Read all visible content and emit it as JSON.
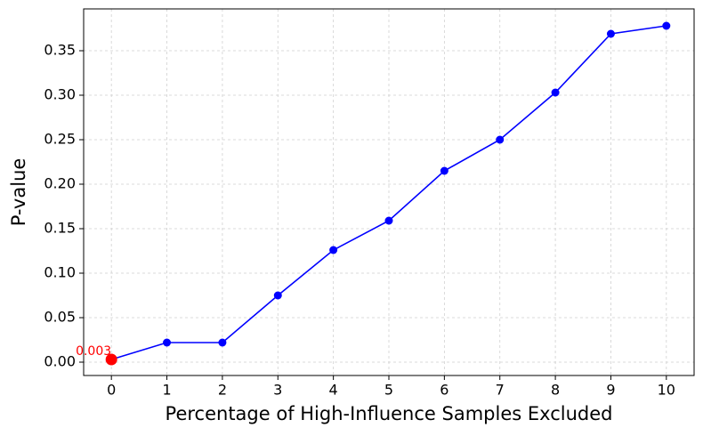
{
  "chart_data": {
    "type": "line",
    "xlabel": "Percentage of High-Influence Samples Excluded",
    "ylabel": "P-value",
    "x": [
      0,
      1,
      2,
      3,
      4,
      5,
      6,
      7,
      8,
      9,
      10
    ],
    "series": [
      {
        "name": "P-value",
        "color": "#0000ff",
        "values": [
          0.003,
          0.022,
          0.022,
          0.075,
          0.126,
          0.159,
          0.215,
          0.25,
          0.303,
          0.369,
          0.378
        ]
      }
    ],
    "highlight_index": 0,
    "highlight_color": "#ff0000",
    "xlim": [
      -0.5,
      10.5
    ],
    "xticks": [
      0,
      1,
      2,
      3,
      4,
      5,
      6,
      7,
      8,
      9,
      10
    ],
    "ylim": [
      -0.015,
      0.397
    ],
    "yticks": [
      {
        "value": 0,
        "label": "0.00"
      },
      0.05,
      {
        "value": 0.1,
        "label": "0.10"
      },
      0.15,
      {
        "value": 0.2,
        "label": "0.20"
      },
      0.25,
      {
        "value": 0.3,
        "label": "0.30"
      },
      0.35
    ],
    "grid": true
  }
}
